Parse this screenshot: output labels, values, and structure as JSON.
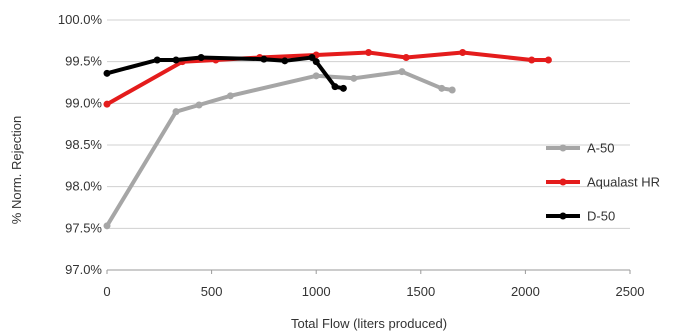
{
  "chart_data": {
    "type": "line",
    "title": "",
    "xlabel": "Total Flow (liters produced)",
    "ylabel": "% Norm. Rejection",
    "xlim": [
      0,
      2500
    ],
    "ylim": [
      97.0,
      100.0
    ],
    "x_ticks": [
      0,
      500,
      1000,
      1500,
      2000,
      2500
    ],
    "x_tick_labels": [
      "0",
      "500",
      "1000",
      "1500",
      "2000",
      "2500"
    ],
    "y_ticks": [
      97.0,
      97.5,
      98.0,
      98.5,
      99.0,
      99.5,
      100.0
    ],
    "y_tick_labels": [
      "97.0%",
      "97.5%",
      "98.0%",
      "98.5%",
      "99.0%",
      "99.5%",
      "100.0%"
    ],
    "grid": "horizontal",
    "legend_position": "right",
    "series": [
      {
        "name": "A-50",
        "color": "#a6a6a6",
        "points": [
          [
            0,
            97.53
          ],
          [
            330,
            98.9
          ],
          [
            440,
            98.98
          ],
          [
            590,
            99.09
          ],
          [
            1000,
            99.33
          ],
          [
            1180,
            99.3
          ],
          [
            1410,
            99.38
          ],
          [
            1600,
            99.18
          ],
          [
            1650,
            99.16
          ]
        ]
      },
      {
        "name": "Aqualast HR",
        "color": "#e41c1c",
        "points": [
          [
            0,
            98.99
          ],
          [
            360,
            99.5
          ],
          [
            520,
            99.52
          ],
          [
            730,
            99.55
          ],
          [
            1000,
            99.58
          ],
          [
            1250,
            99.61
          ],
          [
            1430,
            99.55
          ],
          [
            1700,
            99.61
          ],
          [
            2030,
            99.52
          ],
          [
            2110,
            99.52
          ]
        ]
      },
      {
        "name": "D-50",
        "color": "#000000",
        "points": [
          [
            0,
            99.36
          ],
          [
            240,
            99.52
          ],
          [
            330,
            99.52
          ],
          [
            450,
            99.55
          ],
          [
            750,
            99.53
          ],
          [
            850,
            99.51
          ],
          [
            980,
            99.55
          ],
          [
            1000,
            99.5
          ],
          [
            1090,
            99.2
          ],
          [
            1130,
            99.18
          ]
        ]
      }
    ]
  }
}
